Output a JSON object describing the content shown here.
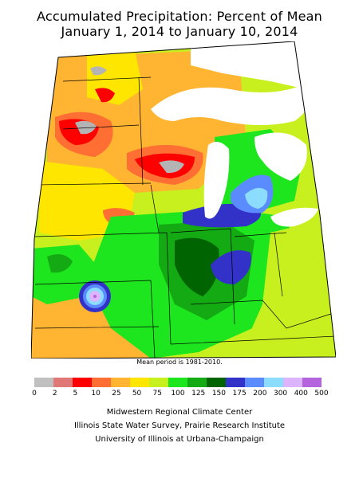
{
  "title_line1": "Accumulated Precipitation: Percent of Mean",
  "title_line2": "January 1, 2014 to January 10, 2014",
  "mean_note": "Mean period is 1981-2010.",
  "legend": {
    "ticks": [
      "0",
      "2",
      "5",
      "10",
      "25",
      "50",
      "75",
      "100",
      "125",
      "150",
      "175",
      "200",
      "300",
      "400",
      "500"
    ],
    "colors": [
      "#c0c0c0",
      "#e07878",
      "#ff0000",
      "#ff6e32",
      "#ffb432",
      "#ffe600",
      "#c8f01e",
      "#1ee61e",
      "#14aa14",
      "#006400",
      "#3232c8",
      "#5a8cff",
      "#8cdcff",
      "#dcb4ff",
      "#b464dc"
    ]
  },
  "credits": {
    "line1": "Midwestern Regional Climate Center",
    "line2": "Illinois State Water Survey, Prairie Research Institute",
    "line3": "University of Illinois at Urbana-Champaign"
  },
  "map_colors": {
    "gray": "#b4b4b4",
    "pink": "#e07878",
    "red": "#ff0000",
    "orange_red": "#ff6e32",
    "orange": "#ffb432",
    "yellow": "#ffe600",
    "yellow_green": "#c8f01e",
    "green": "#1ee61e",
    "mid_green": "#14aa14",
    "dark_green": "#006400",
    "blue": "#3232c8",
    "light_blue": "#5a8cff",
    "sky": "#8cdcff",
    "lavender": "#dcb4ff",
    "violet": "#b464dc",
    "water": "#ffffff"
  }
}
